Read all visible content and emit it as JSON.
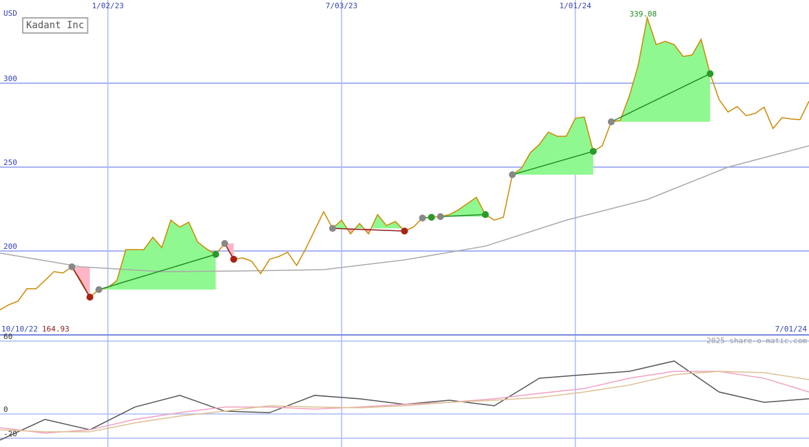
{
  "chart_data": {
    "type": "line",
    "title": "Kadant Inc",
    "y_label": "USD",
    "watermark": "2025 share-o-matic.com",
    "x_start": "10/10/22",
    "x_end": "7/01/24",
    "xticks": [
      "1/02/23",
      "7/03/23",
      "1/01/24"
    ],
    "ylim": [
      150,
      349.6
    ],
    "yticks": [
      200,
      250,
      300
    ],
    "grid": true,
    "series": [
      {
        "color": "#cc8800",
        "values": [
          164.93,
          168.0,
          170.1,
          177.5,
          177.5,
          182.4,
          187.7,
          186.9,
          190.6,
          182.4,
          172.5,
          177.0,
          178.3,
          182.4,
          200.8,
          200.8,
          200.8,
          208.2,
          202.0,
          218.4,
          214.3,
          217.2,
          205.3,
          201.2,
          198.0,
          204.5,
          195.1,
          195.9,
          193.9,
          186.5,
          195.1,
          196.7,
          199.2,
          191.4,
          201.2,
          212.3,
          223.4,
          213.5,
          218.4,
          210.2,
          216.4,
          210.2,
          221.7,
          215.2,
          217.6,
          211.9,
          214.3,
          219.7,
          220.1,
          220.5,
          221.7,
          224.6,
          228.3,
          232.0,
          221.7,
          218.4,
          220.1,
          245.5,
          249.2,
          258.6,
          263.5,
          270.9,
          268.4,
          268.4,
          279.1,
          279.9,
          259.4,
          262.7,
          277.0,
          277.9,
          292.2,
          310.7,
          339.08,
          323.0,
          325.0,
          323.0,
          316.0,
          316.8,
          326.2,
          305.7,
          290.2,
          282.8,
          286.1,
          280.7,
          282.0,
          285.7,
          273.0,
          279.5,
          278.7,
          278.3,
          289.3
        ]
      },
      {
        "color": "#a8a8a8",
        "values": [
          198.8,
          190.6,
          187.7,
          188.1,
          188.9,
          194.7,
          202.9,
          218.4,
          230.7,
          250.0,
          262.7
        ]
      }
    ],
    "trades": [
      {
        "from": 8,
        "to": 10
      },
      {
        "from": 11,
        "to": 24
      },
      {
        "from": 25,
        "to": 26
      },
      {
        "from": 37,
        "to": 45
      },
      {
        "from": 47,
        "to": 48
      },
      {
        "from": 49,
        "to": 54
      },
      {
        "from": 57,
        "to": 66
      },
      {
        "from": 68,
        "to": 79
      }
    ],
    "trade_colors": {
      "entry": "#888888",
      "gain": "#2a9a2a",
      "loss": "#aa2211",
      "gain_line": "#228b22",
      "loss_line": "#8b1a1a",
      "gain_fill": "#90f890",
      "loss_fill": "#ffb6c8"
    },
    "indicator": {
      "ylim": [
        -27.2,
        65.1
      ],
      "yticks": [
        -20,
        0,
        60
      ],
      "series": [
        {
          "color": "#555555",
          "values": [
            -21.5,
            -4.5,
            -13,
            5.7,
            15.3,
            2.3,
            1.1,
            15.3,
            12.5,
            7.9,
            11.3,
            6.8,
            29.4,
            32.3,
            35.1,
            43.6,
            18.1,
            9.6,
            12.5
          ]
        },
        {
          "color": "#f0a0c0",
          "values": [
            -11.3,
            -15.8,
            -13,
            -4.5,
            1.1,
            5.7,
            5.7,
            4,
            5.7,
            7.9,
            9.6,
            12.5,
            17,
            20.9,
            29.4,
            35.1,
            35.1,
            29.4,
            18.1
          ]
        },
        {
          "color": "#dcc090",
          "values": [
            -13,
            -14.7,
            -14.7,
            -7.4,
            -1.7,
            2.3,
            6.8,
            5.7,
            5.1,
            6.8,
            9.6,
            11.3,
            13.6,
            18.1,
            23.8,
            32.3,
            35.1,
            34,
            28.3
          ]
        }
      ]
    }
  }
}
